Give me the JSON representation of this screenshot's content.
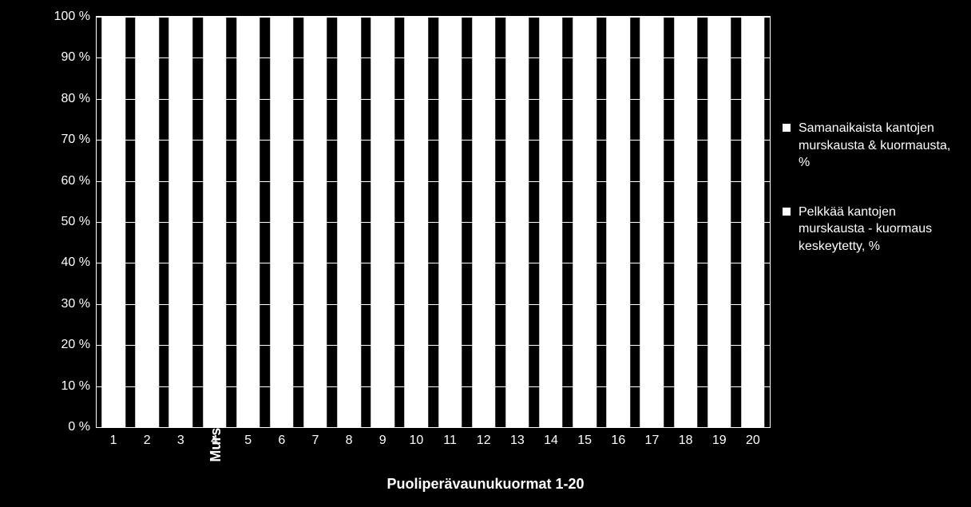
{
  "chart": {
    "type": "bar-stacked-100",
    "background_color": "#000000",
    "text_color": "#ffffff",
    "ylabel": "Murskauksen päätyövaiheiden suhteelliset ajanmenenekit, %",
    "xlabel": "Puoliperävaunukuormat 1-20",
    "label_fontsize": 18,
    "label_fontweight": "bold",
    "tick_fontsize": 16,
    "ylim": [
      0,
      100
    ],
    "ytick_step": 10,
    "ytick_suffix": " %",
    "grid_color": "#ffffff",
    "plot_border_color": "#ffffff",
    "bar_width_ratio": 0.7,
    "categories": [
      "1",
      "2",
      "3",
      "4",
      "5",
      "6",
      "7",
      "8",
      "9",
      "10",
      "11",
      "12",
      "13",
      "14",
      "15",
      "16",
      "17",
      "18",
      "19",
      "20"
    ],
    "series": [
      {
        "label": "Samanaikaista kantojen murskausta & kuormausta, %",
        "color": "#ffffff",
        "marker_color": "#ffffff"
      },
      {
        "label": "Pelkkää kantojen murskausta - kuormaus keskeytetty,  %",
        "color": "#ffffff",
        "marker_color": "#ffffff"
      }
    ],
    "values_total_pct": [
      100,
      100,
      100,
      100,
      100,
      100,
      100,
      100,
      100,
      100,
      100,
      100,
      100,
      100,
      100,
      100,
      100,
      100,
      100,
      100
    ],
    "legend": {
      "position": "right",
      "fontsize": 16
    }
  }
}
